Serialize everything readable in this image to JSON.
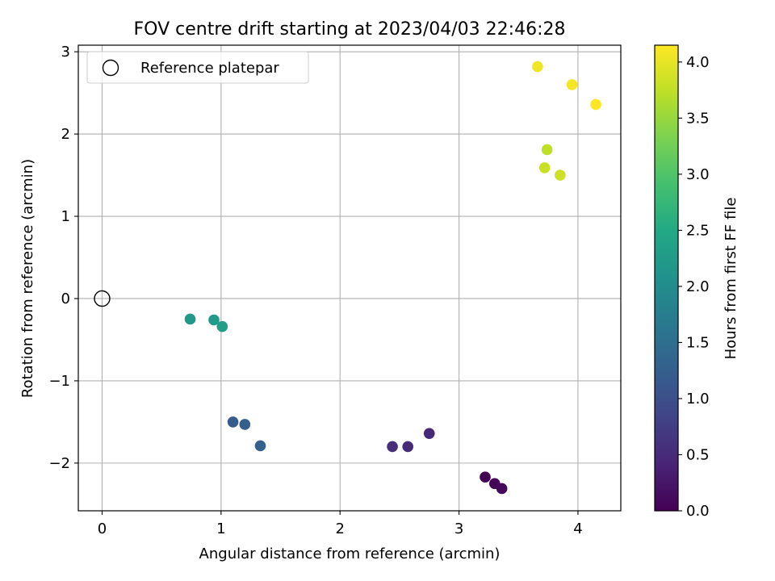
{
  "chart_data": {
    "type": "scatter",
    "title": "FOV centre drift starting at 2023/04/03 22:46:28",
    "xlabel": "Angular distance from reference (arcmin)",
    "ylabel": "Rotation from reference (arcmin)",
    "xlim": [
      -0.2,
      4.36
    ],
    "ylim": [
      -2.58,
      3.08
    ],
    "xticks": [
      0,
      1,
      2,
      3,
      4
    ],
    "xtick_labels": [
      "0",
      "1",
      "2",
      "3",
      "4"
    ],
    "yticks": [
      -2,
      -1,
      0,
      1,
      2,
      3
    ],
    "ytick_labels": [
      "−2",
      "−1",
      "0",
      "1",
      "2",
      "3"
    ],
    "grid": true,
    "legend": {
      "position": "upper-left",
      "entries": [
        "Reference platepar"
      ]
    },
    "reference_point": {
      "label": "Reference platepar",
      "x": 0,
      "y": 0,
      "marker": "open-circle"
    },
    "colorbar": {
      "label": "Hours from first FF file",
      "colormap": "viridis",
      "range": [
        0.0,
        4.15
      ],
      "ticks": [
        0.0,
        0.5,
        1.0,
        1.5,
        2.0,
        2.5,
        3.0,
        3.5,
        4.0
      ],
      "tick_labels": [
        "0.0",
        "0.5",
        "1.0",
        "1.5",
        "2.0",
        "2.5",
        "3.0",
        "3.5",
        "4.0"
      ]
    },
    "points": [
      {
        "x": 3.22,
        "y": -2.17,
        "hours": 0.0
      },
      {
        "x": 3.3,
        "y": -2.25,
        "hours": 0.05
      },
      {
        "x": 3.36,
        "y": -2.31,
        "hours": 0.1
      },
      {
        "x": 2.75,
        "y": -1.64,
        "hours": 0.45
      },
      {
        "x": 2.57,
        "y": -1.8,
        "hours": 0.5
      },
      {
        "x": 2.44,
        "y": -1.8,
        "hours": 0.55
      },
      {
        "x": 1.1,
        "y": -1.5,
        "hours": 1.2
      },
      {
        "x": 1.2,
        "y": -1.53,
        "hours": 1.25
      },
      {
        "x": 1.33,
        "y": -1.79,
        "hours": 1.3
      },
      {
        "x": 0.74,
        "y": -0.25,
        "hours": 2.2
      },
      {
        "x": 0.94,
        "y": -0.26,
        "hours": 2.25
      },
      {
        "x": 1.01,
        "y": -0.34,
        "hours": 2.3
      },
      {
        "x": 3.74,
        "y": 1.81,
        "hours": 3.75
      },
      {
        "x": 3.72,
        "y": 1.59,
        "hours": 3.8
      },
      {
        "x": 3.85,
        "y": 1.5,
        "hours": 3.85
      },
      {
        "x": 3.66,
        "y": 2.82,
        "hours": 4.05
      },
      {
        "x": 3.95,
        "y": 2.6,
        "hours": 4.1
      },
      {
        "x": 4.15,
        "y": 2.36,
        "hours": 4.15
      }
    ]
  }
}
